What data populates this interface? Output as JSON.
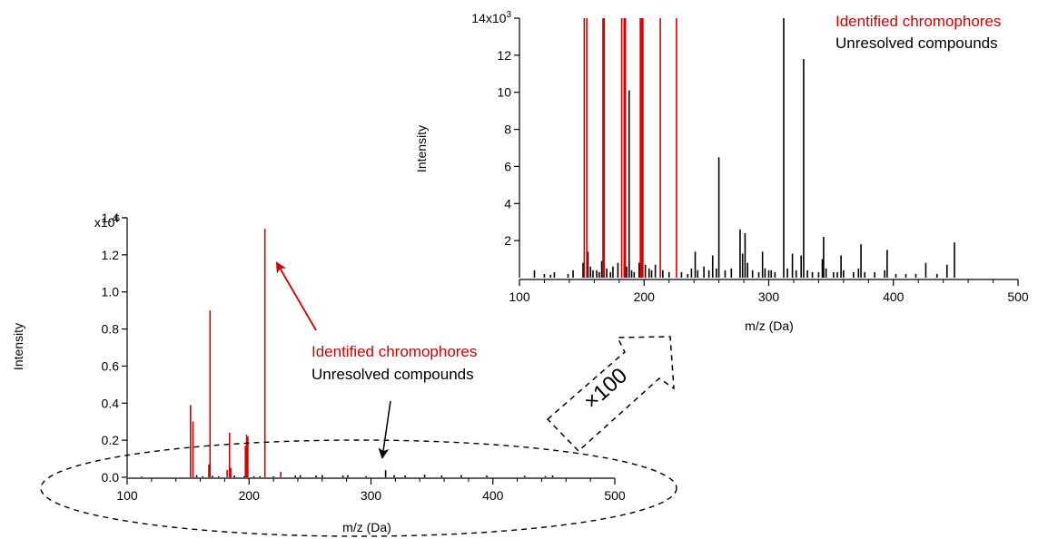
{
  "colors": {
    "identified": "#d40000",
    "unresolved": "#000000"
  },
  "legend": {
    "identified": "Identified chromophores",
    "unresolved": "Unresolved compounds"
  },
  "magnification_label": "×100",
  "chart_data": [
    {
      "type": "bar",
      "panel": "full-spectrum",
      "xlabel": "m/z (Da)",
      "ylabel": "Intensity",
      "xlim": [
        100,
        500
      ],
      "ylim": [
        0,
        1.4
      ],
      "y_multiplier": "x10",
      "y_multiplier_exp": "6",
      "x_ticks": [
        "100",
        "200",
        "300",
        "400",
        "500"
      ],
      "y_ticks": [
        {
          "value": 0.0,
          "label": "0.0"
        },
        {
          "value": 0.2,
          "label": "0.2"
        },
        {
          "value": 0.4,
          "label": "0.4"
        },
        {
          "value": 0.6,
          "label": "0.6"
        },
        {
          "value": 0.8,
          "label": "0.8"
        },
        {
          "value": 1.0,
          "label": "1.0"
        },
        {
          "value": 1.2,
          "label": "1.2"
        },
        {
          "value": 1.4,
          "label": "1.4"
        }
      ],
      "series": [
        {
          "name": "Identified chromophores",
          "color": "#d40000",
          "points": [
            [
              152,
              0.39
            ],
            [
              154,
              0.3
            ],
            [
              167,
              0.07
            ],
            [
              168,
              0.9
            ],
            [
              182,
              0.04
            ],
            [
              184,
              0.24
            ],
            [
              185,
              0.05
            ],
            [
              197,
              0.17
            ],
            [
              198,
              0.23
            ],
            [
              199,
              0.22
            ],
            [
              213,
              1.34
            ],
            [
              226,
              0.03
            ]
          ]
        },
        {
          "name": "Unresolved compounds",
          "color": "#000000",
          "points": [
            [
              112,
              0.004
            ],
            [
              157,
              0.012
            ],
            [
              162,
              0.006
            ],
            [
              170,
              0.008
            ],
            [
              175,
              0.005
            ],
            [
              188,
              0.01
            ],
            [
              196,
              0.006
            ],
            [
              204,
              0.006
            ],
            [
              209,
              0.006
            ],
            [
              220,
              0.005
            ],
            [
              238,
              0.01
            ],
            [
              242,
              0.012
            ],
            [
              255,
              0.01
            ],
            [
              260,
              0.012
            ],
            [
              277,
              0.01
            ],
            [
              281,
              0.012
            ],
            [
              296,
              0.006
            ],
            [
              312,
              0.038
            ],
            [
              319,
              0.012
            ],
            [
              328,
              0.01
            ],
            [
              344,
              0.014
            ],
            [
              358,
              0.01
            ],
            [
              374,
              0.012
            ],
            [
              395,
              0.01
            ],
            [
              426,
              0.008
            ],
            [
              443,
              0.006
            ],
            [
              449,
              0.01
            ]
          ]
        }
      ],
      "annotations": {
        "identified_label": "Identified chromophores",
        "unresolved_label": "Unresolved compounds"
      }
    },
    {
      "type": "bar",
      "panel": "zoom-inset",
      "xlabel": "m/z (Da)",
      "ylabel": "Intensity",
      "xlim": [
        100,
        500
      ],
      "ylim": [
        0,
        14
      ],
      "y_multiplier": "14x10",
      "y_multiplier_exp": "3",
      "x_ticks": [
        "100",
        "200",
        "300",
        "400",
        "500"
      ],
      "y_ticks": [
        {
          "value": 2,
          "label": "2"
        },
        {
          "value": 4,
          "label": "4"
        },
        {
          "value": 6,
          "label": "6"
        },
        {
          "value": 8,
          "label": "8"
        },
        {
          "value": 10,
          "label": "10"
        },
        {
          "value": 12,
          "label": "12"
        }
      ],
      "series": [
        {
          "name": "Identified chromophores",
          "color": "#d40000",
          "points": [
            [
              152,
              14
            ],
            [
              154,
              14
            ],
            [
              167,
              14
            ],
            [
              168,
              14
            ],
            [
              182,
              14
            ],
            [
              184,
              14
            ],
            [
              185,
              14
            ],
            [
              197,
              14
            ],
            [
              198,
              14
            ],
            [
              199,
              14
            ],
            [
              213,
              14
            ],
            [
              226,
              14
            ]
          ]
        },
        {
          "name": "Unresolved compounds",
          "color": "#000000",
          "points": [
            [
              112,
              0.4
            ],
            [
              120,
              0.2
            ],
            [
              125,
              0.15
            ],
            [
              128,
              0.3
            ],
            [
              139,
              0.2
            ],
            [
              143,
              0.4
            ],
            [
              151,
              0.8
            ],
            [
              155,
              1.4
            ],
            [
              157,
              0.6
            ],
            [
              159,
              0.4
            ],
            [
              162,
              0.4
            ],
            [
              164,
              0.3
            ],
            [
              166,
              0.9
            ],
            [
              170,
              0.5
            ],
            [
              173,
              0.3
            ],
            [
              175,
              0.6
            ],
            [
              179,
              0.8
            ],
            [
              186,
              0.6
            ],
            [
              188,
              10.1
            ],
            [
              190,
              0.4
            ],
            [
              192,
              0.3
            ],
            [
              196,
              0.8
            ],
            [
              201,
              0.7
            ],
            [
              204,
              0.5
            ],
            [
              206,
              0.4
            ],
            [
              209,
              0.7
            ],
            [
              215,
              0.4
            ],
            [
              220,
              0.3
            ],
            [
              230,
              0.3
            ],
            [
              235,
              0.2
            ],
            [
              238,
              0.5
            ],
            [
              241,
              1.4
            ],
            [
              243,
              0.4
            ],
            [
              248,
              0.6
            ],
            [
              252,
              0.4
            ],
            [
              255,
              1.2
            ],
            [
              258,
              0.5
            ],
            [
              260,
              6.5
            ],
            [
              265,
              0.4
            ],
            [
              270,
              0.5
            ],
            [
              277,
              2.6
            ],
            [
              279,
              1.3
            ],
            [
              281,
              2.4
            ],
            [
              283,
              0.8
            ],
            [
              287,
              0.4
            ],
            [
              292,
              0.3
            ],
            [
              295,
              1.4
            ],
            [
              297,
              0.5
            ],
            [
              300,
              0.4
            ],
            [
              302,
              0.4
            ],
            [
              305,
              0.3
            ],
            [
              312,
              14
            ],
            [
              315,
              0.5
            ],
            [
              319,
              1.3
            ],
            [
              322,
              0.4
            ],
            [
              326,
              1.2
            ],
            [
              328,
              11.8
            ],
            [
              331,
              0.4
            ],
            [
              335,
              0.3
            ],
            [
              340,
              0.3
            ],
            [
              343,
              1.0
            ],
            [
              344,
              2.2
            ],
            [
              346,
              0.5
            ],
            [
              352,
              0.3
            ],
            [
              355,
              0.3
            ],
            [
              358,
              1.2
            ],
            [
              360,
              0.4
            ],
            [
              368,
              0.3
            ],
            [
              372,
              0.5
            ],
            [
              374,
              1.8
            ],
            [
              377,
              0.3
            ],
            [
              385,
              0.3
            ],
            [
              393,
              0.4
            ],
            [
              395,
              1.5
            ],
            [
              402,
              0.2
            ],
            [
              410,
              0.2
            ],
            [
              418,
              0.2
            ],
            [
              426,
              0.8
            ],
            [
              435,
              0.2
            ],
            [
              443,
              0.7
            ],
            [
              449,
              1.9
            ]
          ]
        }
      ],
      "annotations": {
        "identified_label": "Identified chromophores",
        "unresolved_label": "Unresolved compounds"
      }
    }
  ]
}
